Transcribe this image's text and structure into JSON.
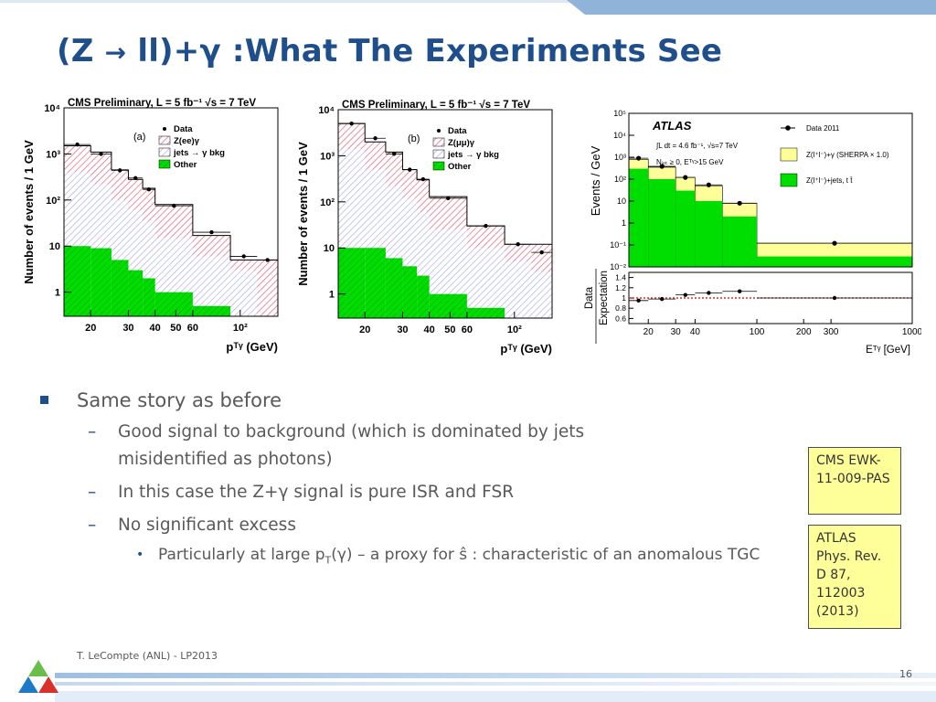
{
  "slide": {
    "title_parts": [
      "(Z ",
      "→",
      " ll)+",
      "γ",
      " :What The Experiments See"
    ],
    "bullets": {
      "l1": "Same story as before",
      "l2_1": "Good signal to background (which is dominated by jets misidentified as photons)",
      "l2_2_a": "In this case the Z+",
      "l2_2_g": "γ",
      "l2_2_b": " signal is pure ISR and FSR",
      "l2_3": "No significant excess",
      "l3_a": "Particularly at large p",
      "l3_sub": "T",
      "l3_b": "(γ) – a proxy for ŝ : characteristic of an anomalous TGC"
    },
    "dash_marker": "–",
    "dot_marker": "•",
    "notes": {
      "cms": "CMS EWK-11-009-PAS",
      "atlas": "ATLAS Phys. Rev. D 87, 112003 (2013)"
    },
    "footer": "T. LeCompte (ANL) - LP2013",
    "page_number": "16",
    "colors": {
      "title": "#1f4e8c",
      "accent_band": "#8fb3d9",
      "note_bg": "#ffff99",
      "signal_green": "#00dd00",
      "bkg_lilac": "#c8c8ee",
      "zg_red": "#e0607a",
      "atlas_yellow": "#ffff99"
    }
  },
  "chart_data": [
    {
      "type": "bar",
      "title": "CMS Preliminary, L = 5 fb⁻¹   √s = 7 TeV",
      "panel": "(a)",
      "xlabel": "pᵀᵞ (GeV)",
      "ylabel": "Number of events / 1 GeV",
      "xscale": "log",
      "yscale": "log",
      "xlim": [
        15,
        150
      ],
      "ylim": [
        0.3,
        10000
      ],
      "xticks": [
        "20",
        "30",
        "40",
        "50",
        "60",
        "10²"
      ],
      "yticks": [
        "1",
        "10",
        "10²",
        "10³",
        "10⁴"
      ],
      "legend": [
        "Data",
        "Z(ee)γ",
        "jets → γ bkg",
        "Other"
      ],
      "bin_edges": [
        15,
        20,
        25,
        30,
        35,
        40,
        60,
        90,
        120,
        150
      ],
      "series": [
        {
          "name": "Other",
          "values": [
            10,
            9,
            5,
            3,
            2,
            1,
            0.5,
            0.3,
            0.3
          ]
        },
        {
          "name": "jets → γ bkg",
          "values": [
            400,
            220,
            100,
            60,
            35,
            15,
            6,
            3,
            0.3
          ]
        },
        {
          "name": "Z(ee)γ",
          "values": [
            1500,
            1100,
            450,
            280,
            180,
            80,
            17,
            5,
            5
          ]
        },
        {
          "name": "Data",
          "values": [
            1600,
            1000,
            440,
            300,
            170,
            75,
            20,
            6,
            5
          ]
        }
      ]
    },
    {
      "type": "bar",
      "title": "CMS Preliminary, L = 5 fb⁻¹   √s = 7 TeV",
      "panel": "(b)",
      "xlabel": "pᵀᵞ (GeV)",
      "ylabel": "Number of events / 1 GeV",
      "xscale": "log",
      "yscale": "log",
      "xlim": [
        15,
        150
      ],
      "ylim": [
        0.3,
        10000
      ],
      "xticks": [
        "20",
        "30",
        "40",
        "50",
        "60",
        "10²"
      ],
      "yticks": [
        "1",
        "10",
        "10²",
        "10³",
        "10⁴"
      ],
      "legend": [
        "Data",
        "Z(μμ)γ",
        "jets → γ bkg",
        "Other"
      ],
      "bin_edges": [
        15,
        20,
        25,
        30,
        35,
        40,
        60,
        90,
        120,
        150
      ],
      "series": [
        {
          "name": "Other",
          "values": [
            10,
            10,
            6,
            4,
            2.5,
            1,
            0.5,
            0.3,
            0.3
          ]
        },
        {
          "name": "jets → γ bkg",
          "values": [
            1400,
            500,
            220,
            120,
            60,
            25,
            10,
            5,
            3
          ]
        },
        {
          "name": "Z(μμ)γ",
          "values": [
            5000,
            2000,
            1200,
            500,
            300,
            130,
            30,
            12,
            12
          ]
        },
        {
          "name": "Data",
          "values": [
            5000,
            2400,
            1100,
            500,
            310,
            120,
            30,
            12,
            8
          ]
        }
      ]
    },
    {
      "type": "bar",
      "title": "ATLAS",
      "annotations": [
        "∫L dt = 4.6 fb⁻¹, √s=7 TeV",
        "Nⱼₑₜ ≥ 0, Eᵀᵞ>15 GeV"
      ],
      "xlabel": "Eᵀᵞ [GeV]",
      "ylabel": "Events / GeV",
      "ratio_ylabel": [
        "Data",
        "Expectation"
      ],
      "xscale": "log",
      "yscale": "log",
      "xlim": [
        15,
        1000
      ],
      "ylim": [
        0.01,
        100000
      ],
      "xticks": [
        "20",
        "30",
        "40",
        "100",
        "200",
        "300",
        "1000"
      ],
      "yticks": [
        "10⁻²",
        "10⁻¹",
        "1",
        "10",
        "10²",
        "10³",
        "10⁴",
        "10⁵"
      ],
      "legend": [
        "Data 2011",
        "Z(l⁺l⁻)+γ (SHERPA × 1.0)",
        "Z(l⁺l⁻)+jets, t t̄"
      ],
      "bin_edges": [
        15,
        20,
        30,
        40,
        60,
        100,
        1000
      ],
      "series": [
        {
          "name": "Z(l⁺l⁻)+jets, t t̄",
          "values": [
            300,
            100,
            30,
            10,
            2,
            0.03
          ]
        },
        {
          "name": "Z(l⁺l⁻)+γ (SHERPA × 1.0)",
          "values": [
            800,
            350,
            120,
            50,
            8,
            0.12
          ]
        },
        {
          "name": "Data 2011",
          "values": [
            900,
            380,
            120,
            55,
            8,
            0.12
          ]
        }
      ],
      "ratio": {
        "yticks": [
          "0.6",
          "0.8",
          "1",
          "1.2",
          "1.4"
        ],
        "ylim": [
          0.5,
          1.5
        ],
        "values": [
          0.95,
          0.98,
          1.06,
          1.1,
          1.13,
          1.0
        ]
      }
    }
  ]
}
